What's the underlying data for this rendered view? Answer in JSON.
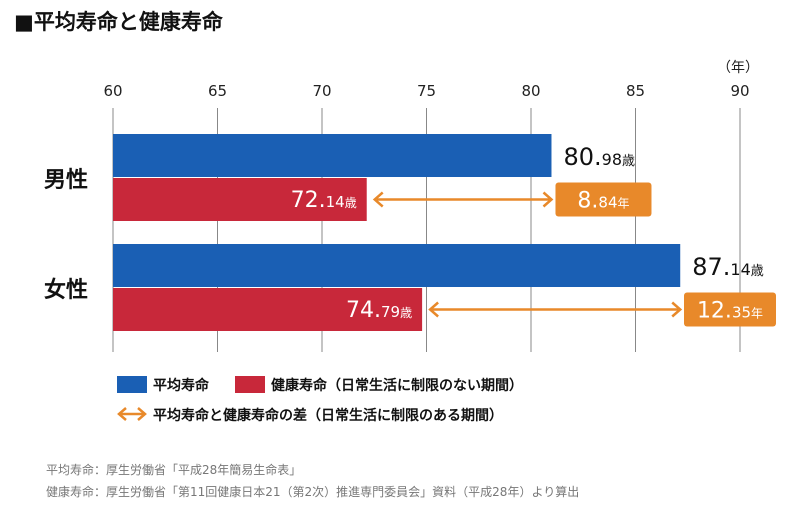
{
  "title": "■平均寿命と健康寿命",
  "chart_data": {
    "type": "bar",
    "orientation": "horizontal",
    "title": "平均寿命と健康寿命",
    "unit_label": "（年）",
    "xlim": [
      60,
      90
    ],
    "x_ticks": [
      "60",
      "65",
      "70",
      "75",
      "80",
      "85",
      "90"
    ],
    "grid": true,
    "categories": [
      "男性",
      "女性"
    ],
    "series": [
      {
        "name": "平均寿命",
        "color": "#1a5fb4",
        "values": [
          80.98,
          87.14
        ],
        "labels": [
          {
            "big": "80.",
            "small": "98",
            "unit": "歳"
          },
          {
            "big": "87.",
            "small": "14",
            "unit": "歳"
          }
        ]
      },
      {
        "name": "健康寿命（日常生活に制限のない期間）",
        "color": "#c8283a",
        "values": [
          72.14,
          74.79
        ],
        "labels": [
          {
            "big": "72.",
            "small": "14",
            "unit": "歳"
          },
          {
            "big": "74.",
            "small": "79",
            "unit": "歳"
          }
        ]
      }
    ],
    "differences": {
      "name": "平均寿命と健康寿命の差（日常生活に制限のある期間）",
      "color": "#e8892a",
      "values": [
        8.84,
        12.35
      ],
      "labels": [
        {
          "big": "8.",
          "small": "84",
          "unit": "年"
        },
        {
          "big": "12.",
          "small": "35",
          "unit": "年"
        }
      ]
    },
    "legend": {
      "item1": "平均寿命",
      "item2": "健康寿命（日常生活に制限のない期間）",
      "item3": "平均寿命と健康寿命の差（日常生活に制限のある期間）"
    }
  },
  "footnotes": [
    "平均寿命：厚生労働省「平成28年簡易生命表」",
    "健康寿命：厚生労働省「第11回健康日本21（第2次）推進専門委員会」資料（平成28年）より算出"
  ]
}
